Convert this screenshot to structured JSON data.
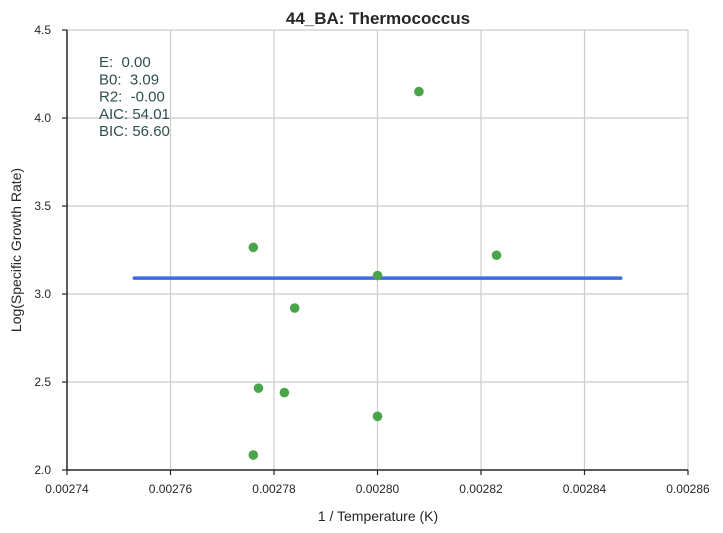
{
  "chart_data": {
    "type": "scatter",
    "title": "44_BA: Thermococcus",
    "xlabel": "1 / Temperature (K)",
    "ylabel": "Log(Specific Growth Rate)",
    "xlim": [
      0.00274,
      0.00286
    ],
    "ylim": [
      2.0,
      4.5
    ],
    "x_ticks": [
      "0.00274",
      "0.00276",
      "0.00278",
      "0.00280",
      "0.00282",
      "0.00284",
      "0.00286"
    ],
    "y_ticks": [
      "2.0",
      "2.5",
      "3.0",
      "3.5",
      "4.0",
      "4.5"
    ],
    "grid": true,
    "points": [
      {
        "x": 0.002808,
        "y": 4.15
      },
      {
        "x": 0.002776,
        "y": 3.265
      },
      {
        "x": 0.002823,
        "y": 3.22
      },
      {
        "x": 0.0028,
        "y": 3.105
      },
      {
        "x": 0.002784,
        "y": 2.92
      },
      {
        "x": 0.002777,
        "y": 2.465
      },
      {
        "x": 0.002782,
        "y": 2.44
      },
      {
        "x": 0.0028,
        "y": 2.305
      },
      {
        "x": 0.002776,
        "y": 2.085
      }
    ],
    "fit_line": {
      "x": [
        0.002753,
        0.002847
      ],
      "y": [
        3.09,
        3.09
      ]
    },
    "annotations": [
      "E:  0.00",
      "B0:  3.09",
      "R2:  -0.00",
      "AIC: 54.01",
      "BIC: 56.60"
    ],
    "colors": {
      "points": "#4aa44a",
      "fit_line": "#4169e1",
      "grid": "#cccccc",
      "stats_text": "#2f4f4f"
    }
  }
}
